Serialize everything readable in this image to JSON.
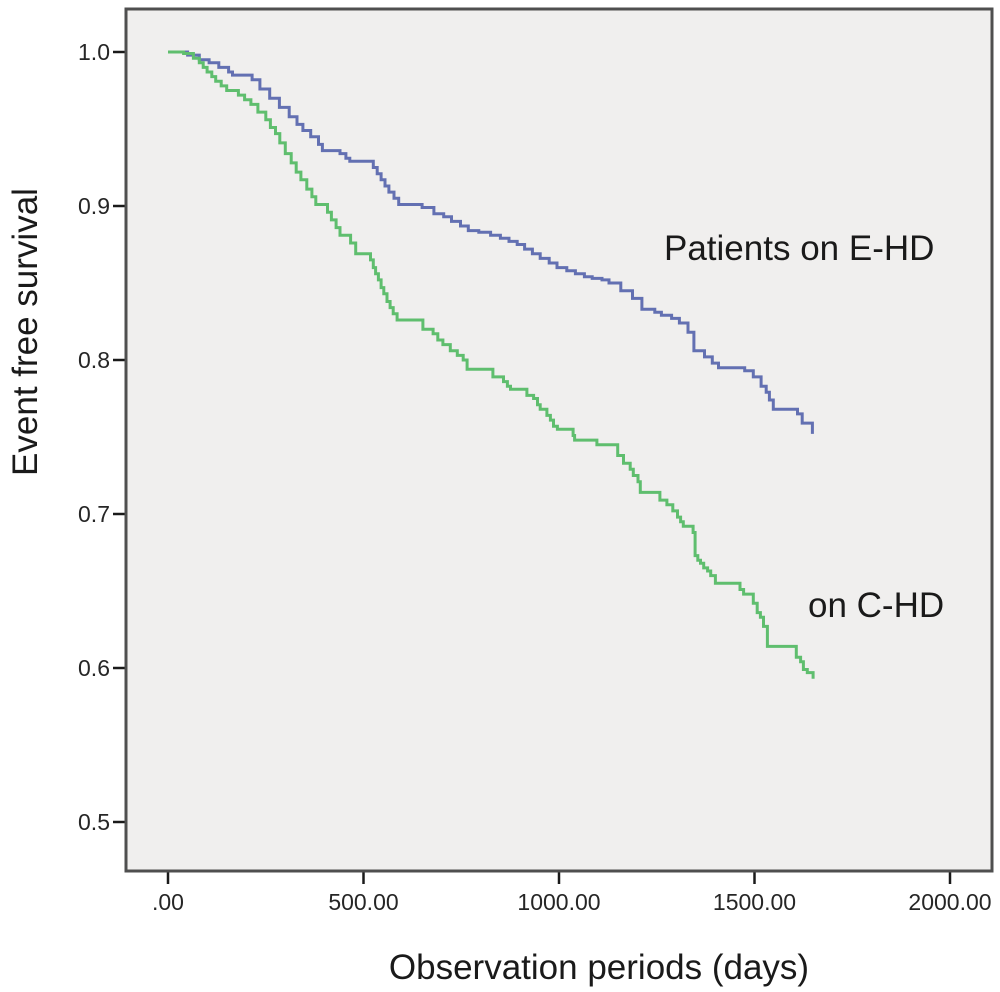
{
  "figure": {
    "x_label": "Observation periods (days)",
    "y_label": "Event free survival"
  },
  "chart_data": {
    "type": "line",
    "subtype": "kaplan-meier-step-curves",
    "title": "",
    "xlabel": "Observation periods (days)",
    "ylabel": "Event free survival",
    "xlim": [
      -110,
      2110
    ],
    "ylim": [
      0.468,
      1.028
    ],
    "grid": false,
    "legend_position": "in-plot text annotations",
    "plot_background": "#f0efee",
    "border_color": "#4f4f4f",
    "tick_color": "#1a1a1a",
    "x_ticks": [
      {
        "label": ".00",
        "value": 0
      },
      {
        "label": "500.00",
        "value": 500
      },
      {
        "label": "1000.00",
        "value": 1000
      },
      {
        "label": "1500.00",
        "value": 1500
      },
      {
        "label": "2000.00",
        "value": 2000
      }
    ],
    "y_ticks": [
      {
        "label": "1.0",
        "value": 1.0
      },
      {
        "label": "0.9",
        "value": 0.9
      },
      {
        "label": "0.8",
        "value": 0.8
      },
      {
        "label": "0.7",
        "value": 0.7
      },
      {
        "label": "0.6",
        "value": 0.6
      },
      {
        "label": "0.5",
        "value": 0.5
      }
    ],
    "annotations": [
      {
        "text": "Patients on E-HD",
        "anchor_day": 1270,
        "anchor_survival": 0.87
      },
      {
        "text": "on C-HD",
        "anchor_day": 1640,
        "anchor_survival": 0.64
      }
    ],
    "series": [
      {
        "name": "Patients on E-HD",
        "color": "#6370b2",
        "points": [
          [
            0,
            1.0
          ],
          [
            50,
            0.998
          ],
          [
            80,
            0.995
          ],
          [
            105,
            0.993
          ],
          [
            130,
            0.99
          ],
          [
            155,
            0.987
          ],
          [
            165,
            0.985
          ],
          [
            215,
            0.982
          ],
          [
            235,
            0.976
          ],
          [
            260,
            0.97
          ],
          [
            285,
            0.964
          ],
          [
            310,
            0.958
          ],
          [
            330,
            0.953
          ],
          [
            345,
            0.949
          ],
          [
            365,
            0.945
          ],
          [
            385,
            0.94
          ],
          [
            395,
            0.936
          ],
          [
            440,
            0.934
          ],
          [
            455,
            0.931
          ],
          [
            465,
            0.929
          ],
          [
            525,
            0.925
          ],
          [
            535,
            0.921
          ],
          [
            545,
            0.917
          ],
          [
            555,
            0.913
          ],
          [
            565,
            0.909
          ],
          [
            578,
            0.905
          ],
          [
            590,
            0.901
          ],
          [
            650,
            0.899
          ],
          [
            680,
            0.895
          ],
          [
            705,
            0.893
          ],
          [
            725,
            0.89
          ],
          [
            748,
            0.887
          ],
          [
            768,
            0.884
          ],
          [
            795,
            0.883
          ],
          [
            825,
            0.881
          ],
          [
            850,
            0.879
          ],
          [
            872,
            0.877
          ],
          [
            893,
            0.875
          ],
          [
            912,
            0.872
          ],
          [
            932,
            0.869
          ],
          [
            952,
            0.866
          ],
          [
            975,
            0.863
          ],
          [
            995,
            0.86
          ],
          [
            1020,
            0.858
          ],
          [
            1042,
            0.856
          ],
          [
            1065,
            0.854
          ],
          [
            1085,
            0.853
          ],
          [
            1110,
            0.852
          ],
          [
            1128,
            0.85
          ],
          [
            1158,
            0.845
          ],
          [
            1188,
            0.84
          ],
          [
            1212,
            0.833
          ],
          [
            1245,
            0.831
          ],
          [
            1262,
            0.829
          ],
          [
            1288,
            0.827
          ],
          [
            1308,
            0.824
          ],
          [
            1330,
            0.818
          ],
          [
            1345,
            0.806
          ],
          [
            1372,
            0.802
          ],
          [
            1392,
            0.798
          ],
          [
            1408,
            0.795
          ],
          [
            1475,
            0.793
          ],
          [
            1497,
            0.789
          ],
          [
            1517,
            0.783
          ],
          [
            1530,
            0.779
          ],
          [
            1538,
            0.774
          ],
          [
            1548,
            0.768
          ],
          [
            1610,
            0.765
          ],
          [
            1622,
            0.759
          ],
          [
            1648,
            0.752
          ]
        ]
      },
      {
        "name": "on C-HD",
        "color": "#5fbe6e",
        "points": [
          [
            0,
            1.0
          ],
          [
            40,
            0.999
          ],
          [
            65,
            0.996
          ],
          [
            80,
            0.993
          ],
          [
            90,
            0.99
          ],
          [
            100,
            0.987
          ],
          [
            112,
            0.984
          ],
          [
            122,
            0.981
          ],
          [
            136,
            0.978
          ],
          [
            150,
            0.975
          ],
          [
            180,
            0.972
          ],
          [
            196,
            0.969
          ],
          [
            212,
            0.966
          ],
          [
            230,
            0.961
          ],
          [
            250,
            0.956
          ],
          [
            262,
            0.951
          ],
          [
            275,
            0.947
          ],
          [
            286,
            0.941
          ],
          [
            300,
            0.934
          ],
          [
            315,
            0.928
          ],
          [
            328,
            0.922
          ],
          [
            340,
            0.917
          ],
          [
            355,
            0.911
          ],
          [
            368,
            0.906
          ],
          [
            378,
            0.901
          ],
          [
            408,
            0.896
          ],
          [
            418,
            0.891
          ],
          [
            430,
            0.886
          ],
          [
            440,
            0.881
          ],
          [
            467,
            0.876
          ],
          [
            480,
            0.869
          ],
          [
            518,
            0.865
          ],
          [
            525,
            0.86
          ],
          [
            531,
            0.856
          ],
          [
            538,
            0.852
          ],
          [
            545,
            0.847
          ],
          [
            552,
            0.843
          ],
          [
            560,
            0.838
          ],
          [
            568,
            0.834
          ],
          [
            576,
            0.83
          ],
          [
            586,
            0.826
          ],
          [
            652,
            0.82
          ],
          [
            678,
            0.817
          ],
          [
            690,
            0.813
          ],
          [
            703,
            0.81
          ],
          [
            722,
            0.806
          ],
          [
            740,
            0.803
          ],
          [
            755,
            0.8
          ],
          [
            765,
            0.794
          ],
          [
            831,
            0.789
          ],
          [
            858,
            0.786
          ],
          [
            868,
            0.783
          ],
          [
            876,
            0.781
          ],
          [
            918,
            0.777
          ],
          [
            935,
            0.775
          ],
          [
            945,
            0.771
          ],
          [
            952,
            0.768
          ],
          [
            969,
            0.764
          ],
          [
            978,
            0.761
          ],
          [
            986,
            0.757
          ],
          [
            996,
            0.755
          ],
          [
            1036,
            0.751
          ],
          [
            1040,
            0.748
          ],
          [
            1097,
            0.745
          ],
          [
            1150,
            0.738
          ],
          [
            1165,
            0.733
          ],
          [
            1182,
            0.729
          ],
          [
            1190,
            0.725
          ],
          [
            1202,
            0.721
          ],
          [
            1208,
            0.714
          ],
          [
            1258,
            0.709
          ],
          [
            1276,
            0.706
          ],
          [
            1291,
            0.702
          ],
          [
            1303,
            0.698
          ],
          [
            1311,
            0.695
          ],
          [
            1318,
            0.692
          ],
          [
            1343,
            0.688
          ],
          [
            1348,
            0.673
          ],
          [
            1355,
            0.67
          ],
          [
            1362,
            0.668
          ],
          [
            1370,
            0.665
          ],
          [
            1380,
            0.663
          ],
          [
            1388,
            0.66
          ],
          [
            1400,
            0.655
          ],
          [
            1463,
            0.651
          ],
          [
            1472,
            0.648
          ],
          [
            1497,
            0.642
          ],
          [
            1507,
            0.636
          ],
          [
            1515,
            0.633
          ],
          [
            1523,
            0.627
          ],
          [
            1533,
            0.614
          ],
          [
            1607,
            0.607
          ],
          [
            1618,
            0.604
          ],
          [
            1625,
            0.599
          ],
          [
            1635,
            0.597
          ],
          [
            1650,
            0.593
          ]
        ]
      }
    ]
  }
}
